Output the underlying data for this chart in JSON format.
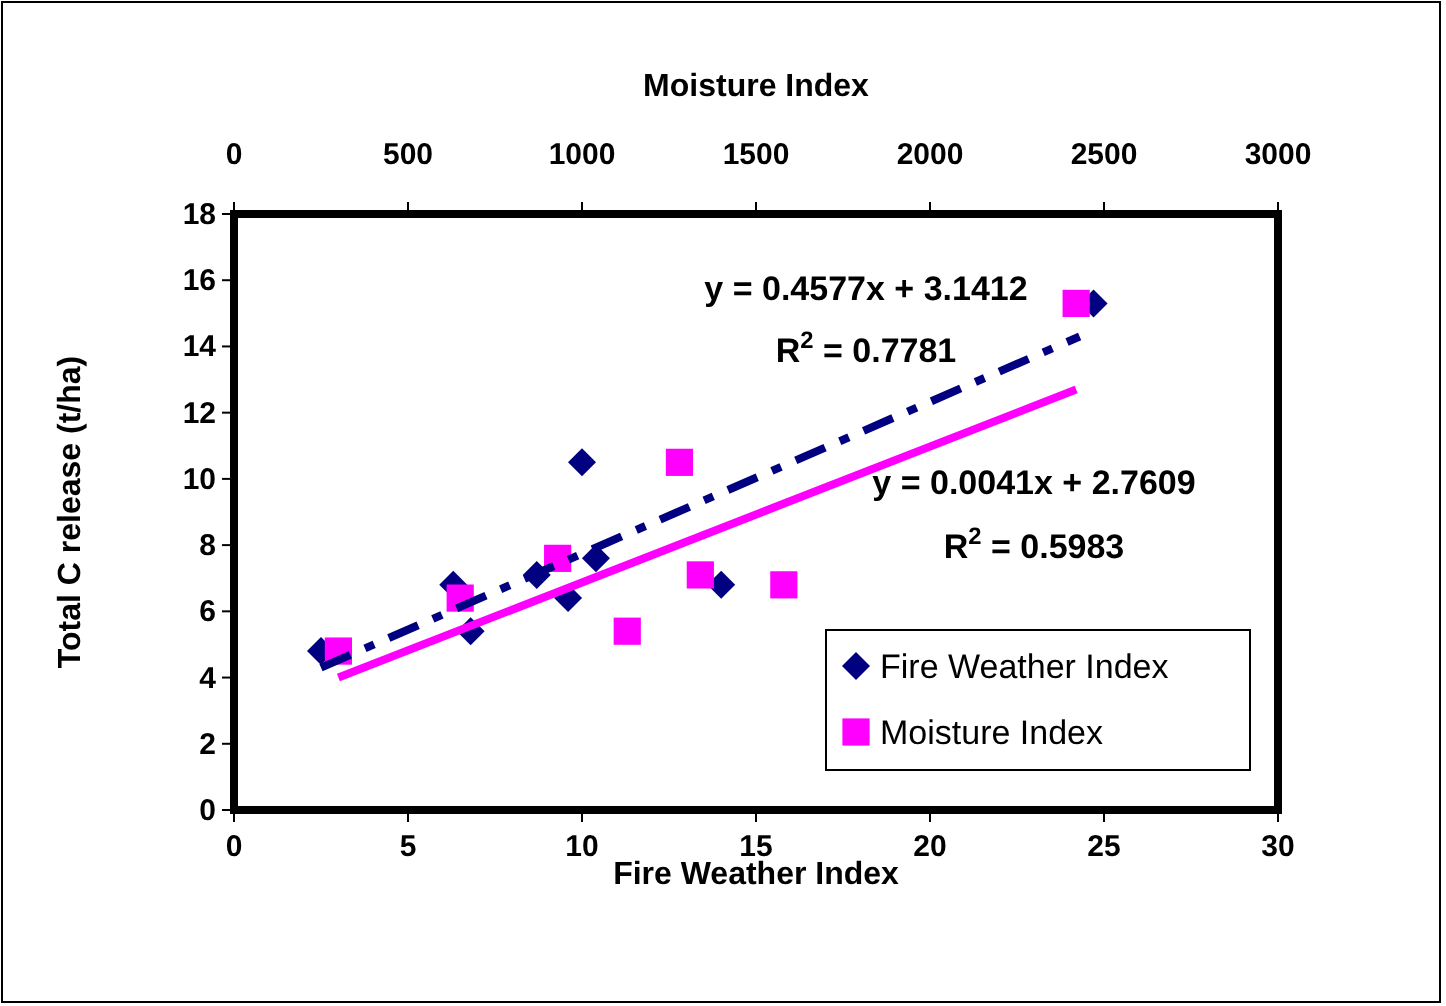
{
  "chart_data": {
    "type": "scatter",
    "xlabel": "Fire Weather Index",
    "ylabel": "Total C release (t/ha)",
    "x2label": "Moisture Index",
    "xlim": [
      0,
      30
    ],
    "xticks": [
      0,
      5,
      10,
      15,
      20,
      25,
      30
    ],
    "x2lim": [
      0,
      3000
    ],
    "x2ticks": [
      0,
      500,
      1000,
      1500,
      2000,
      2500,
      3000
    ],
    "ylim": [
      0,
      18
    ],
    "yticks": [
      0,
      2,
      4,
      6,
      8,
      10,
      12,
      14,
      16,
      18
    ],
    "grid": false,
    "legend": "bottom right",
    "series": [
      {
        "name": "Fire Weather Index",
        "type": "scatter",
        "marker": "diamond",
        "color": "#000080",
        "x": [
          2.5,
          6.3,
          6.8,
          8.7,
          9.6,
          10,
          10.4,
          14,
          24.7
        ],
        "values": [
          4.8,
          6.8,
          5.4,
          7.1,
          6.4,
          10.5,
          7.6,
          6.8,
          15.3
        ]
      },
      {
        "name": "Moisture Index",
        "type": "scatter",
        "marker": "square",
        "axis": "x2",
        "color": "#ff00ff",
        "x": [
          300,
          650,
          930,
          1130,
          1280,
          1340,
          1580,
          2420
        ],
        "values": [
          4.8,
          6.4,
          7.6,
          5.4,
          10.5,
          7.1,
          6.8,
          15.3
        ]
      },
      {
        "type": "line",
        "line_style": "dashdot",
        "color": "#000080",
        "x": [
          2.5,
          24.3
        ],
        "values": [
          4.3,
          14.3
        ]
      },
      {
        "type": "line",
        "line_style": "solid",
        "axis": "x2",
        "color": "#ff00ff",
        "x": [
          300,
          2420
        ],
        "values": [
          4,
          12.7
        ]
      }
    ],
    "annotations": [
      "y = 0.4577x + 3.1412",
      "R$^{2}$ = 0.7781",
      "y = 0.0041x + 2.7609",
      "R$^{2}$ = 0.5983"
    ]
  }
}
